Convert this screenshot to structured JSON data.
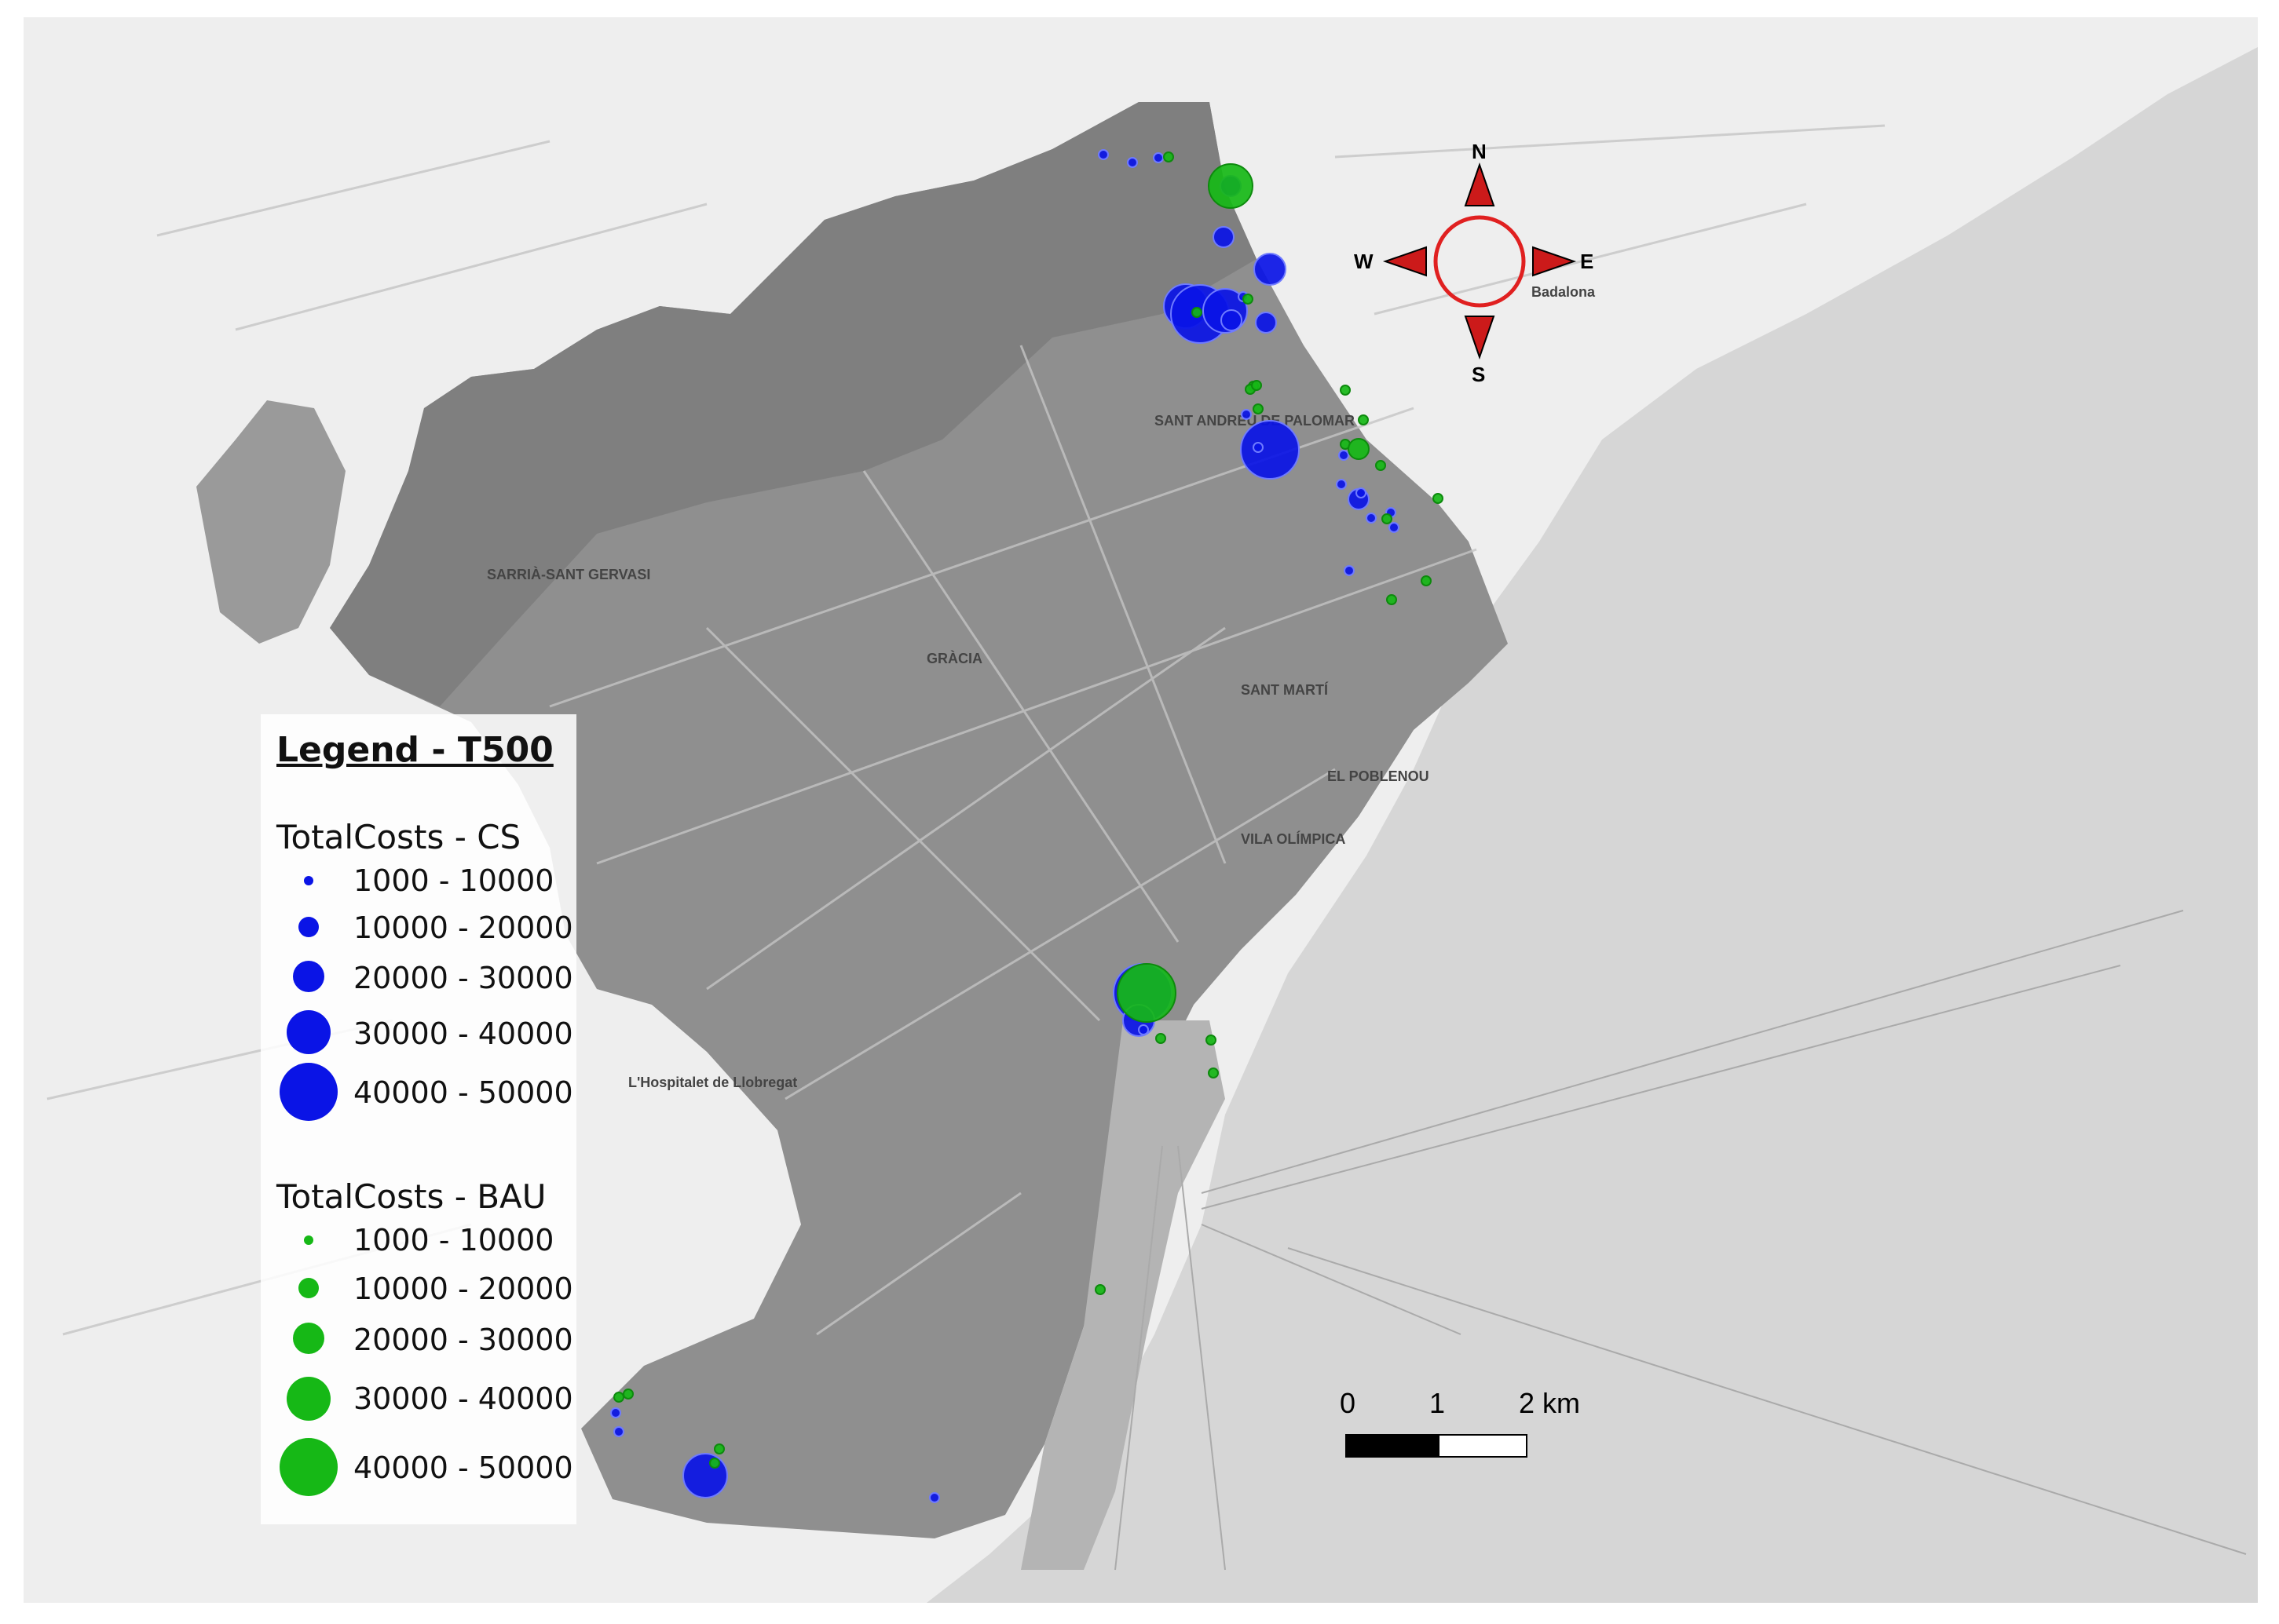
{
  "map": {
    "compass": {
      "north": "N",
      "south": "S",
      "west": "W",
      "east": "E"
    },
    "scale_bar": {
      "labels": [
        "0",
        "1",
        "2 km"
      ]
    },
    "place_labels": [
      "GRÀCIA",
      "SANT MARTÍ",
      "SANT ANDREU DE PALOMAR",
      "L'Hospitalet de Llobregat",
      "Badalona",
      "SARRIÀ-SANT GERVASI",
      "EL POBLENOU",
      "VILA OLÍMPICA"
    ],
    "colors": {
      "cs": "#0a14e6",
      "bau": "#16b816",
      "city_fill": "#8c8c8c",
      "sea": "#d8d8d8",
      "land": "#f2f2f2"
    },
    "cs_points_size_class": [
      1,
      1,
      1,
      2,
      4,
      5,
      4,
      2,
      3,
      2,
      1,
      2,
      5,
      1,
      1,
      2,
      1,
      1,
      1,
      1,
      1,
      1,
      1,
      5,
      3,
      1,
      4,
      1,
      1,
      1
    ],
    "bau_points_size_class": [
      1,
      4,
      1,
      1,
      1,
      1,
      1,
      2,
      1,
      1,
      1,
      1,
      1,
      1,
      1,
      1,
      1,
      5,
      1,
      1,
      1,
      1,
      1,
      1,
      1,
      1
    ]
  },
  "legend": {
    "title": "Legend - T500",
    "cs_heading": "TotalCosts - CS",
    "bau_heading": "TotalCosts - BAU",
    "cs_classes": [
      "1000 - 10000",
      "10000 - 20000",
      "20000 - 30000",
      "30000 - 40000",
      "40000 - 50000"
    ],
    "bau_classes": [
      "1000 - 10000",
      "10000 - 20000",
      "20000 - 30000",
      "30000 - 40000",
      "40000 - 50000"
    ]
  }
}
